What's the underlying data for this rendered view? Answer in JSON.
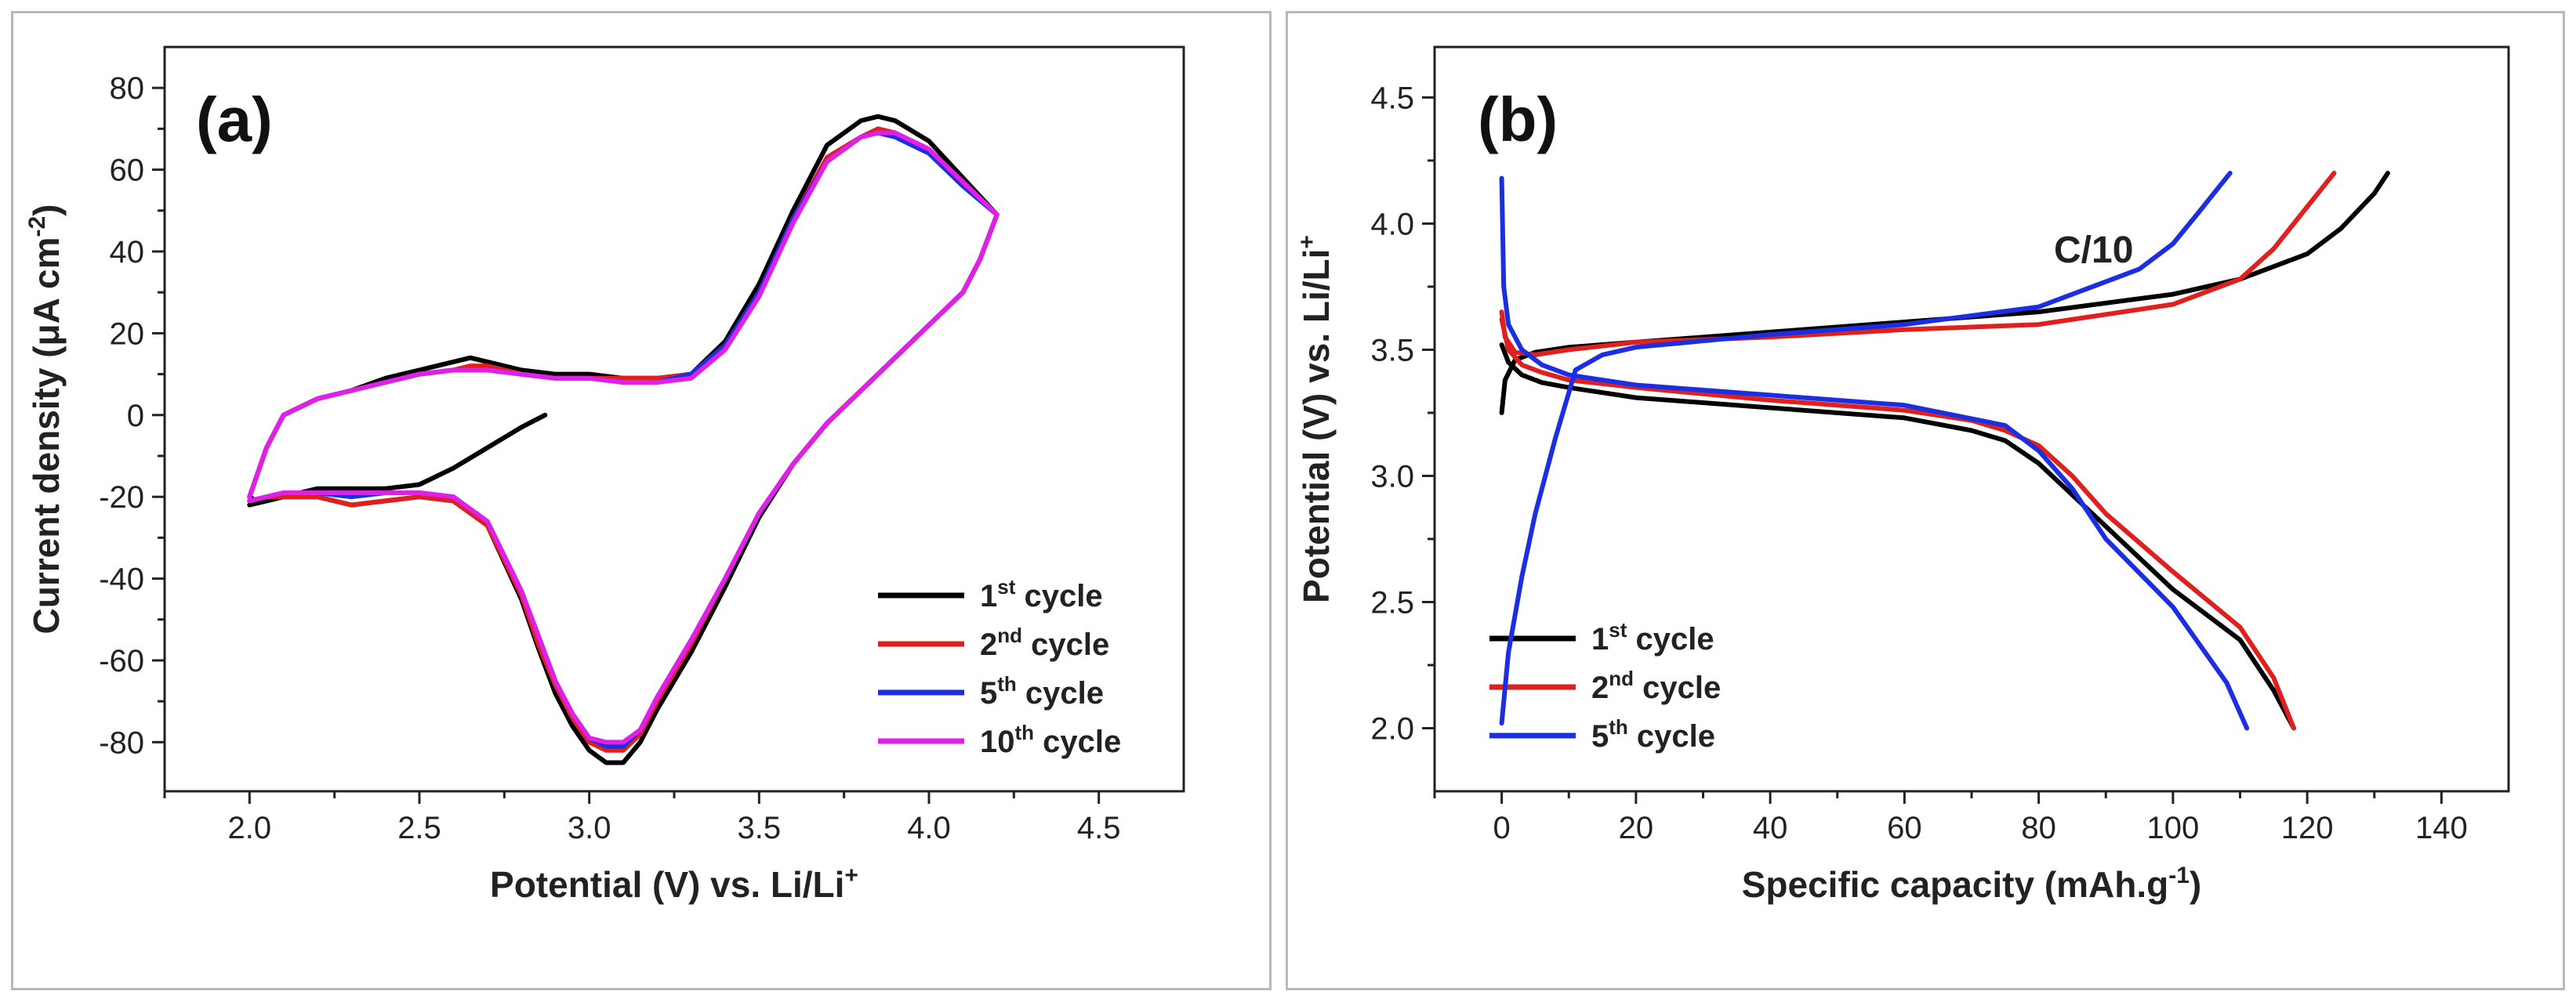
{
  "chart_data": [
    {
      "type": "line",
      "panel_label": "(a)",
      "xlabel": "Potential (V) vs. Li/Li",
      "xlabel_sup": "+",
      "ylabel": "Current density (μA cm",
      "ylabel_sup": "-2",
      "ylabel_end": ")",
      "xlim": [
        1.75,
        4.75
      ],
      "ylim": [
        -92,
        90
      ],
      "xticks": [
        "2.0",
        "2.5",
        "3.0",
        "3.5",
        "4.0",
        "4.5"
      ],
      "yticks": [
        "-80",
        "-60",
        "-40",
        "-20",
        "0",
        "20",
        "40",
        "60",
        "80"
      ],
      "legend_position": "bottom-right",
      "series": [
        {
          "name": "1",
          "name_sup": "st",
          "name_tail": " cycle",
          "color": "#000000",
          "x": [
            2.87,
            2.8,
            2.7,
            2.6,
            2.5,
            2.4,
            2.3,
            2.2,
            2.1,
            2.02,
            2.0,
            2.05,
            2.1,
            2.2,
            2.3,
            2.4,
            2.5,
            2.6,
            2.65,
            2.7,
            2.8,
            2.9,
            3.0,
            3.1,
            3.2,
            3.3,
            3.4,
            3.5,
            3.6,
            3.7,
            3.8,
            3.85,
            3.9,
            4.0,
            4.1,
            4.2,
            4.15,
            4.1,
            4.0,
            3.9,
            3.8,
            3.7,
            3.6,
            3.5,
            3.4,
            3.3,
            3.2,
            3.15,
            3.1,
            3.05,
            3.0,
            2.95,
            2.9,
            2.85,
            2.8,
            2.7,
            2.6,
            2.5,
            2.4,
            2.3,
            2.2,
            2.1,
            2.05,
            2.0
          ],
          "y": [
            0,
            -3,
            -8,
            -13,
            -17,
            -18,
            -18,
            -18,
            -20,
            -21,
            -20,
            -8,
            0,
            4,
            6,
            9,
            11,
            13,
            14,
            13,
            11,
            10,
            10,
            9,
            9,
            10,
            18,
            32,
            50,
            66,
            72,
            73,
            72,
            67,
            58,
            49,
            38,
            30,
            22,
            14,
            6,
            -2,
            -12,
            -25,
            -42,
            -58,
            -72,
            -80,
            -85,
            -85,
            -82,
            -76,
            -68,
            -57,
            -45,
            -27,
            -21,
            -20,
            -21,
            -22,
            -20,
            -20,
            -21,
            -22
          ]
        },
        {
          "name": "2",
          "name_sup": "nd",
          "name_tail": " cycle",
          "color": "#e0201e",
          "x": [
            2.0,
            2.05,
            2.1,
            2.2,
            2.3,
            2.4,
            2.5,
            2.6,
            2.65,
            2.7,
            2.8,
            2.9,
            3.0,
            3.1,
            3.2,
            3.3,
            3.4,
            3.5,
            3.6,
            3.7,
            3.8,
            3.85,
            3.9,
            4.0,
            4.1,
            4.2,
            4.15,
            4.1,
            4.0,
            3.9,
            3.8,
            3.7,
            3.6,
            3.5,
            3.4,
            3.3,
            3.2,
            3.15,
            3.1,
            3.05,
            3.0,
            2.95,
            2.9,
            2.85,
            2.8,
            2.7,
            2.6,
            2.5,
            2.4,
            2.3,
            2.2,
            2.1,
            2.05,
            2.0
          ],
          "y": [
            -20,
            -8,
            0,
            4,
            6,
            8,
            10,
            11,
            12,
            12,
            10,
            9,
            9,
            9,
            9,
            10,
            17,
            30,
            48,
            63,
            68,
            70,
            69,
            65,
            57,
            49,
            38,
            30,
            22,
            14,
            6,
            -2,
            -12,
            -24,
            -40,
            -56,
            -70,
            -78,
            -82,
            -82,
            -80,
            -74,
            -66,
            -56,
            -44,
            -27,
            -21,
            -20,
            -21,
            -22,
            -20,
            -20,
            -20,
            -21
          ]
        },
        {
          "name": "5",
          "name_sup": "th",
          "name_tail": " cycle",
          "color": "#1b2fe0",
          "x": [
            2.0,
            2.05,
            2.1,
            2.2,
            2.25,
            2.3,
            2.4,
            2.5,
            2.6,
            2.65,
            2.7,
            2.8,
            2.9,
            3.0,
            3.1,
            3.2,
            3.3,
            3.4,
            3.5,
            3.6,
            3.7,
            3.8,
            3.85,
            3.9,
            4.0,
            4.1,
            4.2,
            4.15,
            4.1,
            4.0,
            3.9,
            3.8,
            3.7,
            3.6,
            3.5,
            3.4,
            3.3,
            3.2,
            3.15,
            3.1,
            3.05,
            3.0,
            2.95,
            2.9,
            2.85,
            2.8,
            2.7,
            2.6,
            2.5,
            2.45,
            2.4,
            2.3,
            2.2,
            2.1,
            2.05,
            2.0
          ],
          "y": [
            -20,
            -8,
            0,
            4,
            5,
            6,
            8,
            10,
            11,
            11,
            11,
            10,
            9,
            9,
            8,
            8,
            10,
            17,
            30,
            48,
            62,
            68,
            69,
            68,
            64,
            56,
            49,
            38,
            30,
            22,
            14,
            6,
            -2,
            -12,
            -24,
            -40,
            -55,
            -69,
            -77,
            -81,
            -81,
            -79,
            -73,
            -65,
            -54,
            -43,
            -26,
            -20,
            -19,
            -19,
            -19,
            -20,
            -19,
            -19,
            -20,
            -21
          ]
        },
        {
          "name": "10",
          "name_sup": "th",
          "name_tail": " cycle",
          "color": "#e020e6",
          "x": [
            2.0,
            2.05,
            2.1,
            2.2,
            2.3,
            2.4,
            2.5,
            2.6,
            2.65,
            2.7,
            2.8,
            2.9,
            3.0,
            3.1,
            3.2,
            3.3,
            3.4,
            3.5,
            3.6,
            3.7,
            3.8,
            3.85,
            3.9,
            4.0,
            4.1,
            4.2,
            4.15,
            4.1,
            4.0,
            3.9,
            3.8,
            3.7,
            3.6,
            3.5,
            3.4,
            3.3,
            3.2,
            3.15,
            3.1,
            3.05,
            3.0,
            2.95,
            2.9,
            2.85,
            2.8,
            2.7,
            2.6,
            2.5,
            2.4,
            2.3,
            2.2,
            2.1,
            2.05,
            2.0
          ],
          "y": [
            -20,
            -8,
            0,
            4,
            6,
            8,
            10,
            11,
            11,
            11,
            10,
            9,
            9,
            8,
            8,
            9,
            16,
            29,
            47,
            62,
            68,
            69,
            69,
            65,
            57,
            49,
            38,
            30,
            22,
            14,
            6,
            -2,
            -12,
            -24,
            -40,
            -55,
            -69,
            -77,
            -80,
            -80,
            -79,
            -73,
            -65,
            -54,
            -43,
            -26,
            -20,
            -19,
            -19,
            -19,
            -19,
            -19,
            -20,
            -21
          ]
        }
      ]
    },
    {
      "type": "line",
      "panel_label": "(b)",
      "xlabel": "Specific capacity (mAh.g",
      "xlabel_sup": "-1",
      "xlabel_end": ")",
      "ylabel": "Potential (V) vs. Li/Li",
      "ylabel_sup": "+",
      "annotation": "C/10",
      "xlim": [
        -10,
        150
      ],
      "ylim": [
        1.75,
        4.7
      ],
      "xticks": [
        "0",
        "20",
        "40",
        "60",
        "80",
        "100",
        "120",
        "140"
      ],
      "yticks": [
        "2.0",
        "2.5",
        "3.0",
        "3.5",
        "4.0",
        "4.5"
      ],
      "legend_position": "bottom-left",
      "series": [
        {
          "name": "1",
          "name_sup": "st",
          "name_tail": " cycle",
          "color": "#000000",
          "charge": {
            "x": [
              0,
              0.5,
              2,
              5,
              10,
              20,
              40,
              60,
              80,
              100,
              110,
              120,
              125,
              130,
              132
            ],
            "y": [
              3.25,
              3.38,
              3.46,
              3.49,
              3.51,
              3.53,
              3.57,
              3.61,
              3.65,
              3.72,
              3.78,
              3.88,
              3.98,
              4.12,
              4.2
            ]
          },
          "discharge": {
            "x": [
              0,
              1,
              3,
              6,
              10,
              20,
              40,
              60,
              70,
              75,
              80,
              90,
              100,
              110,
              115,
              118
            ],
            "y": [
              3.52,
              3.45,
              3.4,
              3.37,
              3.35,
              3.31,
              3.27,
              3.23,
              3.18,
              3.14,
              3.05,
              2.8,
              2.55,
              2.35,
              2.15,
              2.0
            ]
          }
        },
        {
          "name": "2",
          "name_sup": "nd",
          "name_tail": " cycle",
          "color": "#e0201e",
          "charge": {
            "x": [
              0,
              0.5,
              2,
              5,
              10,
              20,
              40,
              60,
              80,
              100,
              110,
              115,
              118,
              121,
              124
            ],
            "y": [
              3.65,
              3.55,
              3.49,
              3.48,
              3.5,
              3.53,
              3.55,
              3.58,
              3.6,
              3.68,
              3.78,
              3.9,
              4.0,
              4.1,
              4.2
            ]
          },
          "discharge": {
            "x": [
              0,
              1,
              3,
              6,
              10,
              20,
              40,
              60,
              70,
              75,
              80,
              85,
              90,
              100,
              110,
              115,
              118
            ],
            "y": [
              3.62,
              3.5,
              3.44,
              3.41,
              3.38,
              3.35,
              3.3,
              3.26,
              3.22,
              3.18,
              3.12,
              3.0,
              2.85,
              2.62,
              2.4,
              2.2,
              2.0
            ]
          }
        },
        {
          "name": "5",
          "name_sup": "th",
          "name_tail": " cycle",
          "color": "#1b2fe0",
          "charge": {
            "x": [
              0,
              1,
              3,
              5,
              8,
              11,
              15,
              20,
              40,
              60,
              80,
              95,
              100,
              104,
              107,
              108.5
            ],
            "y": [
              2.02,
              2.3,
              2.6,
              2.85,
              3.15,
              3.42,
              3.48,
              3.51,
              3.56,
              3.6,
              3.67,
              3.82,
              3.92,
              4.05,
              4.15,
              4.2
            ]
          },
          "discharge": {
            "x": [
              0,
              0.3,
              1,
              3,
              6,
              10,
              20,
              40,
              60,
              75,
              80,
              85,
              90,
              100,
              108,
              111
            ],
            "y": [
              4.18,
              3.75,
              3.6,
              3.5,
              3.44,
              3.4,
              3.36,
              3.32,
              3.28,
              3.2,
              3.1,
              2.95,
              2.75,
              2.48,
              2.18,
              2.0
            ]
          }
        }
      ]
    }
  ]
}
